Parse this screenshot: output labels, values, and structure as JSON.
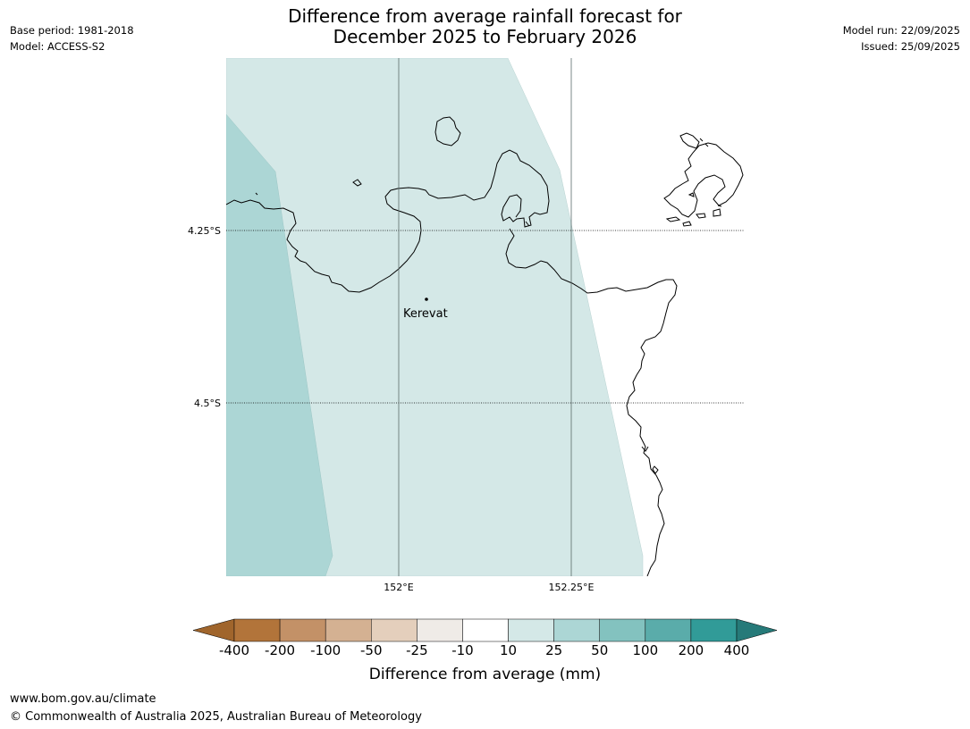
{
  "header": {
    "title_line1": "Difference from average rainfall forecast for",
    "title_line2": "December 2025 to February 2026",
    "base_period": "Base period: 1981-2018",
    "model": "Model: ACCESS-S2",
    "model_run": "Model run: 22/09/2025",
    "issued": "Issued: 25/09/2025"
  },
  "map": {
    "place_label": "Kerevat",
    "lat_labels": [
      "4.25°S",
      "4.5°S"
    ],
    "lon_labels": [
      "152°E",
      "152.25°E"
    ],
    "colors": {
      "ocean": "#ffffff",
      "band_10_25": "#d4e8e7",
      "band_25_50": "#acd6d5",
      "coastline": "#000000",
      "gridline": "#5a6a6a"
    }
  },
  "colorbar": {
    "title": "Difference from average (mm)",
    "labels": [
      "-400",
      "-200",
      "-100",
      "-50",
      "-25",
      "-10",
      "10",
      "25",
      "50",
      "100",
      "200",
      "400"
    ],
    "colors": [
      "#a0652c",
      "#b2743a",
      "#c39167",
      "#d4b192",
      "#e4cfbc",
      "#efebe7",
      "#ffffff",
      "#d4e8e7",
      "#acd6d5",
      "#83c2bf",
      "#5aacaa",
      "#319b98",
      "#267a79"
    ]
  },
  "footer": {
    "url": "www.bom.gov.au/climate",
    "copyright": "© Commonwealth of Australia 2025, Australian Bureau of Meteorology"
  }
}
